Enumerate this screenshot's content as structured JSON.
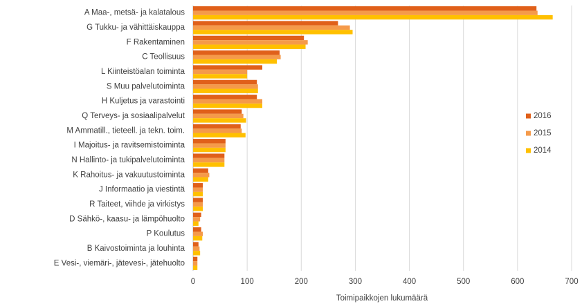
{
  "chart_data": {
    "type": "hbar",
    "xlabel": "Toimipaikkojen lukumäärä",
    "categories": [
      "A Maa-, metsä- ja kalatalous",
      "G Tukku- ja vähittäiskauppa",
      "F Rakentaminen",
      "C Teollisuus",
      "L Kiinteistöalan toiminta",
      "S Muu palvelutoiminta",
      "H Kuljetus ja varastointi",
      "Q Terveys- ja sosiaalipalvelut",
      "M Ammatill., tieteell. ja tekn. toim.",
      "I Majoitus- ja ravitsemistoiminta",
      "N Hallinto- ja tukipalvelutoiminta",
      "K Rahoitus- ja vakuutustoiminta",
      "J Informaatio ja viestintä",
      "R Taiteet, viihde ja virkistys",
      "D Sähkö-, kaasu- ja lämpöhuolto",
      "P Koulutus",
      "B Kaivostoiminta ja louhinta",
      "E Vesi-, viemäri-,  jätevesi-, jätehuolto"
    ],
    "series": [
      {
        "name": "2016",
        "color": "#e0601a",
        "values": [
          635,
          268,
          205,
          160,
          128,
          118,
          118,
          90,
          88,
          60,
          58,
          28,
          18,
          18,
          15,
          15,
          10,
          8
        ]
      },
      {
        "name": "2015",
        "color": "#f59a4a",
        "values": [
          637,
          290,
          212,
          162,
          100,
          120,
          128,
          93,
          90,
          60,
          58,
          30,
          18,
          18,
          13,
          18,
          12,
          8
        ]
      },
      {
        "name": "2014",
        "color": "#ffc000",
        "values": [
          665,
          295,
          208,
          155,
          100,
          120,
          128,
          98,
          97,
          60,
          58,
          28,
          18,
          18,
          10,
          17,
          13,
          8
        ]
      }
    ],
    "xlim": [
      0,
      700
    ],
    "xticks": [
      0,
      100,
      200,
      300,
      400,
      500,
      600,
      700
    ],
    "grid": true,
    "legend": "right"
  }
}
